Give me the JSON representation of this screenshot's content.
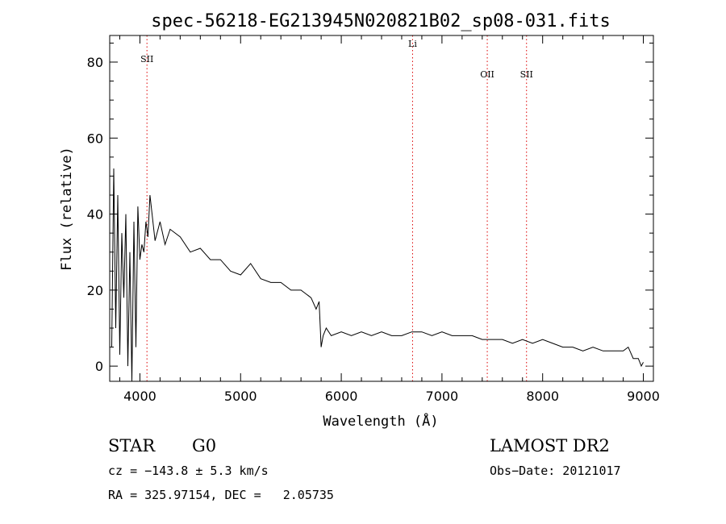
{
  "chart_data": {
    "type": "line",
    "title": "spec-56218-EG213945N020821B02_sp08-031.fits",
    "xlabel": "Wavelength (Å)",
    "ylabel": "Flux (relative)",
    "xlim": [
      3700,
      9100
    ],
    "ylim": [
      -4,
      87
    ],
    "xticks": [
      4000,
      5000,
      6000,
      7000,
      8000,
      9000
    ],
    "yticks": [
      0,
      20,
      40,
      60,
      80
    ],
    "grid": false,
    "line_color": "#000000",
    "marker_line_color": "#dd0000",
    "series": [
      {
        "x": [
          3720,
          3740,
          3760,
          3780,
          3800,
          3820,
          3840,
          3860,
          3880,
          3900,
          3920,
          3940,
          3960,
          3980,
          4000,
          4020,
          4040,
          4060,
          4080,
          4100,
          4150,
          4200,
          4250,
          4300,
          4400,
          4500,
          4600,
          4700,
          4800,
          4900,
          5000,
          5100,
          5200,
          5300,
          5400,
          5500,
          5600,
          5650,
          5700,
          5750,
          5780,
          5800,
          5820,
          5850,
          5900,
          6000,
          6100,
          6200,
          6300,
          6400,
          6500,
          6600,
          6700,
          6800,
          6900,
          7000,
          7100,
          7200,
          7300,
          7400,
          7500,
          7600,
          7700,
          7800,
          7900,
          8000,
          8100,
          8200,
          8300,
          8400,
          8500,
          8600,
          8700,
          8800,
          8850,
          8900,
          8950,
          8980,
          9000
        ],
        "y": [
          5,
          52,
          10,
          45,
          3,
          35,
          18,
          40,
          0,
          30,
          -4,
          38,
          5,
          42,
          28,
          32,
          30,
          38,
          34,
          45,
          33,
          38,
          32,
          36,
          34,
          30,
          31,
          28,
          28,
          25,
          24,
          27,
          23,
          22,
          22,
          20,
          20,
          19,
          18,
          15,
          17,
          5,
          8,
          10,
          8,
          9,
          8,
          9,
          8,
          9,
          8,
          8,
          9,
          9,
          8,
          9,
          8,
          8,
          8,
          7,
          7,
          7,
          6,
          7,
          6,
          7,
          6,
          5,
          5,
          4,
          5,
          4,
          4,
          4,
          5,
          2,
          2,
          0,
          1
        ]
      }
    ],
    "markers": [
      {
        "label": "SII",
        "x": 4070,
        "y": 80
      },
      {
        "label": "Li",
        "x": 6708,
        "y": 84
      },
      {
        "label": "OII",
        "x": 7450,
        "y": 76
      },
      {
        "label": "SII",
        "x": 7840,
        "y": 76
      }
    ]
  },
  "footer": {
    "class_label": "STAR",
    "subclass_label": "G0",
    "survey": "LAMOST DR2",
    "cz": "cz = −143.8 ± 5.3 km/s",
    "obs_date": "Obs−Date: 20121017",
    "coords": "RA = 325.97154, DEC =   2.05735"
  }
}
